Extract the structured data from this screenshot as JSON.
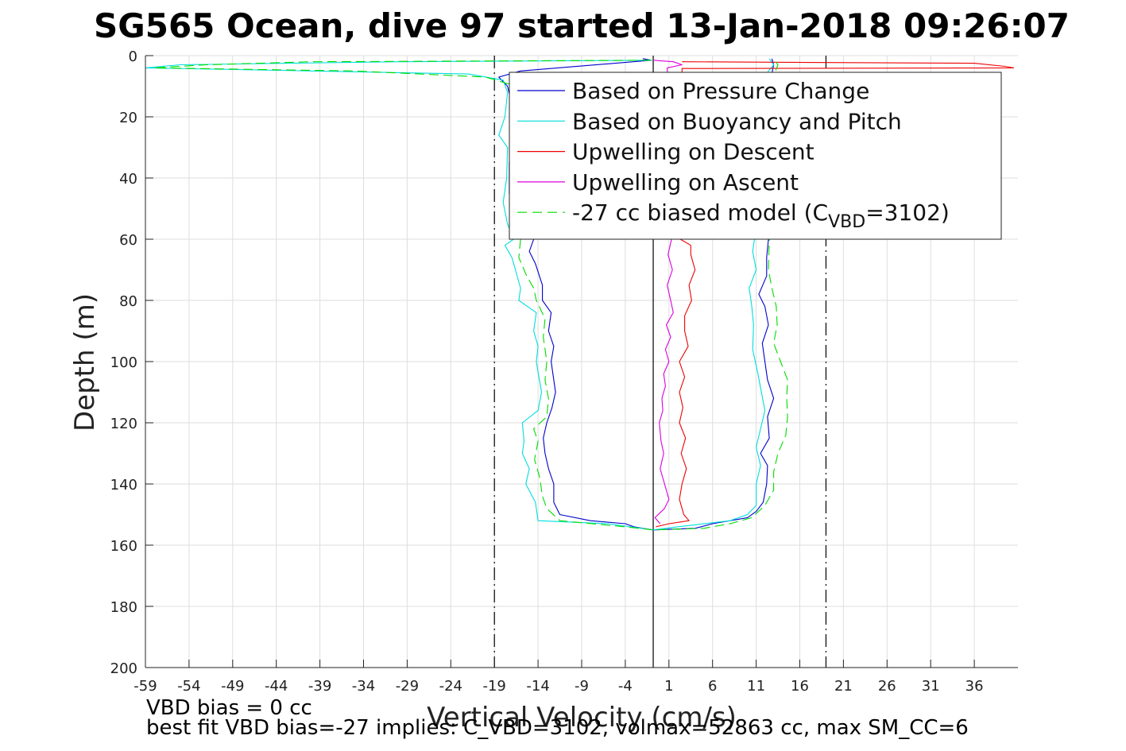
{
  "chart_data": {
    "type": "line",
    "title": "SG565 Ocean, dive 97 started 13-Jan-2018 09:26:07",
    "xlabel": "Vertical Velocity (cm/s)",
    "ylabel": "Depth (m)",
    "xlim": [
      -59,
      41
    ],
    "ylim": [
      0,
      200
    ],
    "y_reversed": true,
    "grid": true,
    "legend_position": "top-right",
    "xticks": [
      -59,
      -54,
      -49,
      -44,
      -39,
      -34,
      -29,
      -24,
      -19,
      -14,
      -9,
      -4,
      1,
      6,
      11,
      16,
      21,
      26,
      31,
      36
    ],
    "yticks": [
      0,
      20,
      40,
      60,
      80,
      100,
      120,
      140,
      160,
      180,
      200
    ],
    "reference_lines": [
      {
        "x": -19,
        "style": "dash-dot",
        "color": "#000000"
      },
      {
        "x": 19,
        "style": "dash-dot",
        "color": "#000000"
      },
      {
        "x": -0.8,
        "style": "solid",
        "color": "#000000"
      }
    ],
    "series": [
      {
        "name": "Based on Pressure Change",
        "color": "#0000cc",
        "style": "solid",
        "points": [
          [
            -2,
            1
          ],
          [
            -1,
            1.5
          ],
          [
            -16,
            5
          ],
          [
            -18.5,
            7
          ],
          [
            -17.5,
            10
          ],
          [
            -17,
            16
          ],
          [
            -17,
            25
          ],
          [
            -17.3,
            35
          ],
          [
            -17.3,
            45
          ],
          [
            -16.5,
            52
          ],
          [
            -14.5,
            60
          ],
          [
            -15,
            64
          ],
          [
            -14.3,
            68
          ],
          [
            -13.5,
            75
          ],
          [
            -13.5,
            80
          ],
          [
            -12.5,
            84
          ],
          [
            -12.8,
            90
          ],
          [
            -12.2,
            95
          ],
          [
            -12.5,
            100
          ],
          [
            -12,
            110
          ],
          [
            -12.4,
            115
          ],
          [
            -13,
            120
          ],
          [
            -13.4,
            125
          ],
          [
            -13.2,
            130
          ],
          [
            -12.8,
            135
          ],
          [
            -12.2,
            140
          ],
          [
            -12.2,
            146
          ],
          [
            -11.5,
            150
          ],
          [
            -8,
            152
          ],
          [
            -4,
            153
          ],
          [
            -3,
            154
          ],
          [
            -2,
            154.5
          ],
          [
            -0.8,
            155
          ],
          [
            4,
            154.5
          ],
          [
            6,
            153
          ],
          [
            10,
            151
          ],
          [
            11,
            149
          ],
          [
            11.8,
            146
          ],
          [
            12.2,
            140
          ],
          [
            12.3,
            134
          ],
          [
            11.5,
            130
          ],
          [
            12.5,
            125
          ],
          [
            12.3,
            118
          ],
          [
            13,
            112
          ],
          [
            12.3,
            106
          ],
          [
            12,
            100
          ],
          [
            11.7,
            94
          ],
          [
            12.4,
            88
          ],
          [
            12,
            82
          ],
          [
            11.3,
            78
          ],
          [
            12.2,
            72
          ],
          [
            12.2,
            66
          ],
          [
            12.4,
            60
          ],
          [
            12.5,
            50
          ],
          [
            12.5,
            40
          ],
          [
            12.5,
            30
          ],
          [
            12.5,
            20
          ],
          [
            12.5,
            10
          ],
          [
            13,
            3
          ],
          [
            12.8,
            1
          ]
        ]
      },
      {
        "name": "Based on Buoyancy and Pitch",
        "color": "#00dddd",
        "style": "solid",
        "points": [
          [
            -1,
            1.5
          ],
          [
            -30,
            2
          ],
          [
            -55,
            3
          ],
          [
            -59,
            4
          ],
          [
            -40,
            5
          ],
          [
            -22,
            6
          ],
          [
            -18,
            8
          ],
          [
            -17.5,
            12
          ],
          [
            -17.8,
            20
          ],
          [
            -18.5,
            26
          ],
          [
            -17.5,
            30
          ],
          [
            -17.6,
            40
          ],
          [
            -18,
            48
          ],
          [
            -17.5,
            55
          ],
          [
            -16.8,
            60
          ],
          [
            -17.8,
            62
          ],
          [
            -17,
            66
          ],
          [
            -16.6,
            70
          ],
          [
            -16,
            76
          ],
          [
            -16.2,
            80
          ],
          [
            -14.2,
            84
          ],
          [
            -14.5,
            90
          ],
          [
            -14,
            95
          ],
          [
            -14.2,
            100
          ],
          [
            -13.6,
            110
          ],
          [
            -14,
            116
          ],
          [
            -15.8,
            120
          ],
          [
            -15.6,
            126
          ],
          [
            -15.8,
            130
          ],
          [
            -15,
            135
          ],
          [
            -15.4,
            140
          ],
          [
            -14.3,
            146
          ],
          [
            -14,
            152
          ],
          [
            -6,
            153
          ],
          [
            -0.8,
            155
          ],
          [
            2,
            154
          ],
          [
            8,
            152
          ],
          [
            10,
            150
          ],
          [
            11,
            147
          ],
          [
            11,
            140
          ],
          [
            11.5,
            134
          ],
          [
            11,
            128
          ],
          [
            11.5,
            122
          ],
          [
            12,
            116
          ],
          [
            11.6,
            110
          ],
          [
            11.2,
            104
          ],
          [
            10.6,
            96
          ],
          [
            10.7,
            88
          ],
          [
            10.5,
            82
          ],
          [
            10.2,
            76
          ],
          [
            11,
            70
          ],
          [
            10.6,
            64
          ],
          [
            10.8,
            60
          ],
          [
            11,
            50
          ],
          [
            11,
            40
          ],
          [
            11,
            30
          ],
          [
            11,
            20
          ],
          [
            11,
            10
          ],
          [
            13,
            3
          ],
          [
            12.5,
            1
          ]
        ]
      },
      {
        "name": "Upwelling on Descent",
        "color": "#ee0000",
        "style": "solid",
        "points": [
          [
            2.5,
            2
          ],
          [
            36,
            2.5
          ],
          [
            39.5,
            3.5
          ],
          [
            40.5,
            4
          ],
          [
            2.5,
            4.2
          ],
          [
            2.3,
            60
          ],
          [
            3.5,
            62
          ],
          [
            3.5,
            65
          ],
          [
            4,
            70
          ],
          [
            3.3,
            75
          ],
          [
            3.6,
            80
          ],
          [
            2.8,
            85
          ],
          [
            2.8,
            90
          ],
          [
            3.2,
            95
          ],
          [
            2.2,
            100
          ],
          [
            2.8,
            105
          ],
          [
            2.2,
            110
          ],
          [
            2.6,
            115
          ],
          [
            2.2,
            120
          ],
          [
            2.9,
            125
          ],
          [
            2.4,
            130
          ],
          [
            3,
            135
          ],
          [
            2.5,
            140
          ],
          [
            2.2,
            145
          ],
          [
            2.7,
            150
          ],
          [
            3.3,
            152
          ],
          [
            1,
            153
          ],
          [
            -0.5,
            154
          ]
        ]
      },
      {
        "name": "Upwelling on Ascent",
        "color": "#dd00dd",
        "style": "solid",
        "points": [
          [
            -0.8,
            1.5
          ],
          [
            1.5,
            2
          ],
          [
            2.5,
            3
          ],
          [
            0.8,
            4
          ],
          [
            1.3,
            60
          ],
          [
            0.9,
            65
          ],
          [
            1.4,
            70
          ],
          [
            0.8,
            75
          ],
          [
            1.2,
            80
          ],
          [
            1.5,
            84
          ],
          [
            0.7,
            88
          ],
          [
            1.2,
            92
          ],
          [
            0.6,
            96
          ],
          [
            1,
            100
          ],
          [
            0.4,
            104
          ],
          [
            0.6,
            108
          ],
          [
            0.2,
            112
          ],
          [
            0.3,
            116
          ],
          [
            -0.1,
            120
          ],
          [
            0.1,
            126
          ],
          [
            0.4,
            130
          ],
          [
            0,
            135
          ],
          [
            0.5,
            140
          ],
          [
            1,
            145
          ],
          [
            0.5,
            148
          ],
          [
            -0.6,
            151
          ],
          [
            0,
            153
          ]
        ]
      },
      {
        "name": "-27 cc biased model (C_VBD=3102)",
        "color": "#00dd00",
        "style": "dashed",
        "points": [
          [
            -1,
            1.5
          ],
          [
            -40,
            2
          ],
          [
            -52,
            3
          ],
          [
            -58,
            4
          ],
          [
            -35,
            5
          ],
          [
            -20,
            7
          ],
          [
            -16.5,
            10
          ],
          [
            -16.8,
            20
          ],
          [
            -17,
            30
          ],
          [
            -16.7,
            40
          ],
          [
            -17,
            50
          ],
          [
            -16,
            60
          ],
          [
            -16.2,
            66
          ],
          [
            -15.3,
            72
          ],
          [
            -14.5,
            76
          ],
          [
            -14.2,
            80
          ],
          [
            -13.2,
            86
          ],
          [
            -13.4,
            92
          ],
          [
            -13,
            100
          ],
          [
            -13.2,
            106
          ],
          [
            -12.8,
            112
          ],
          [
            -13,
            118
          ],
          [
            -14.5,
            122
          ],
          [
            -14,
            126
          ],
          [
            -14.4,
            132
          ],
          [
            -13.8,
            138
          ],
          [
            -13.5,
            144
          ],
          [
            -13,
            148
          ],
          [
            -11.5,
            152
          ],
          [
            -4,
            154
          ],
          [
            -0.8,
            155
          ],
          [
            5,
            154.5
          ],
          [
            8,
            153
          ],
          [
            10.5,
            151
          ],
          [
            12,
            147
          ],
          [
            13,
            142
          ],
          [
            13,
            136
          ],
          [
            13.5,
            130
          ],
          [
            14.4,
            124
          ],
          [
            14.6,
            118
          ],
          [
            14.5,
            112
          ],
          [
            14.6,
            106
          ],
          [
            13.8,
            100
          ],
          [
            13,
            94
          ],
          [
            13.4,
            88
          ],
          [
            13.3,
            82
          ],
          [
            12.8,
            76
          ],
          [
            12.4,
            70
          ],
          [
            12.5,
            60
          ],
          [
            12.5,
            50
          ],
          [
            12.5,
            40
          ],
          [
            12.6,
            30
          ],
          [
            12.6,
            20
          ],
          [
            12.5,
            10
          ],
          [
            13.5,
            3
          ],
          [
            13,
            1
          ]
        ]
      }
    ],
    "legend_labels": [
      "Based on Pressure Change",
      "Based on Buoyancy and Pitch",
      "Upwelling on Descent",
      "Upwelling on Ascent"
    ],
    "legend_model": {
      "prefix": "-27 cc biased model (C",
      "subscript": "VBD",
      "suffix": "=3102)"
    },
    "footer_line1": "VBD bias = 0 cc",
    "footer_line2": "best fit VBD bias=-27 implies: C_VBD=3102, volmax=52863 cc, max SM_CC=6"
  }
}
